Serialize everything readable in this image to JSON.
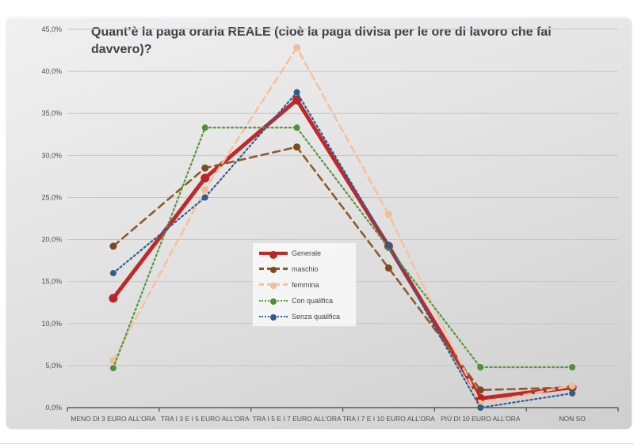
{
  "chart_data": {
    "type": "line",
    "title": "Quant’è la paga oraria REALE (cioè la paga divisa per le ore di lavoro che fai davvero)?",
    "categories": [
      "MENO DI 3 EURO ALL’ORA",
      "TRA I 3 E I 5 EURO ALL’ORA",
      "TRA I 5 E I 7 EURO ALL’ORA",
      "TRA I 7 E I 10 EURO ALL’ORA",
      "PIÙ DI 10 EURO ALL’ORA",
      "NON SO"
    ],
    "series": [
      {
        "name": "Generale",
        "values": [
          13.0,
          27.3,
          36.6,
          19.2,
          1.1,
          2.4
        ],
        "color": "#c0282b",
        "marker_color": "#b92427",
        "style": "solid-thick"
      },
      {
        "name": "maschio",
        "values": [
          19.2,
          28.5,
          31.0,
          16.6,
          2.1,
          2.4
        ],
        "color": "#8f5a28",
        "marker_color": "#7b4b1e",
        "style": "dashed"
      },
      {
        "name": "femmina",
        "values": [
          5.6,
          25.9,
          42.8,
          23.0,
          0.5,
          2.6
        ],
        "color": "#f5c29e",
        "marker_color": "#f2bc94",
        "style": "dashed"
      },
      {
        "name": "Con qualifica",
        "values": [
          4.7,
          33.3,
          33.3,
          19.0,
          4.8,
          4.8
        ],
        "color": "#55973d",
        "marker_color": "#4f8f39",
        "style": "dotted"
      },
      {
        "name": "Senza qualifica",
        "values": [
          16.0,
          25.0,
          37.5,
          19.3,
          0.0,
          1.7
        ],
        "color": "#315e91",
        "marker_color": "#2f5b8e",
        "style": "dotted"
      }
    ],
    "y_ticks": [
      "0,0%",
      "5,0%",
      "10,0%",
      "15,0%",
      "20,0%",
      "25,0%",
      "30,0%",
      "35,0%",
      "40,0%",
      "45,0%"
    ],
    "ylim": [
      0,
      45
    ],
    "y_step": 5,
    "grid": true,
    "legend_position": "inside-center-left",
    "colors": {
      "grid_line": "#c6c6c6",
      "axis_line": "#5a5a5a",
      "tick_label": "#4d4d4d",
      "title_text": "#3f3f46"
    }
  }
}
